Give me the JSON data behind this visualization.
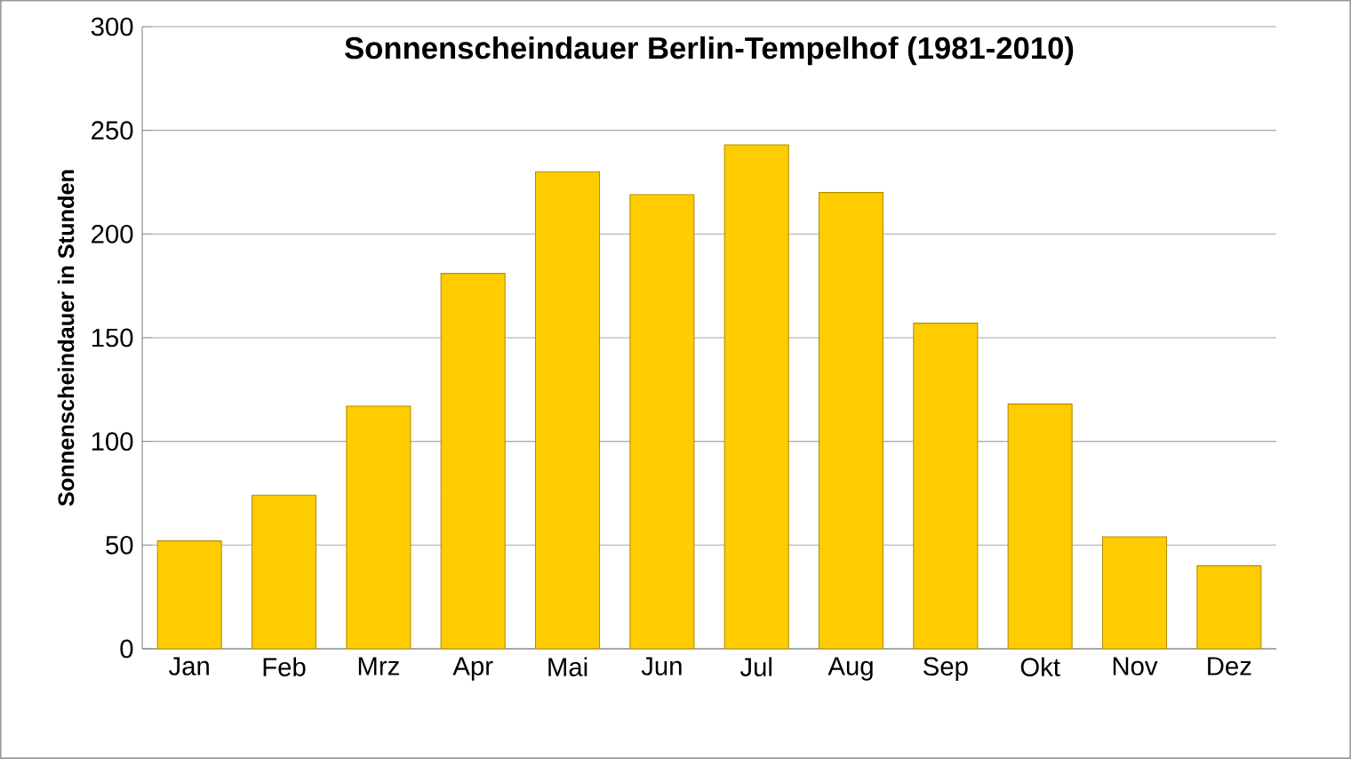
{
  "chart_data": {
    "type": "bar",
    "title": "Sonnenscheindauer Berlin-Tempelhof (1981-2010)",
    "ylabel": "Sonnenscheindauer in Stunden",
    "categories": [
      "Jan",
      "Feb",
      "Mrz",
      "Apr",
      "Mai",
      "Jun",
      "Jul",
      "Aug",
      "Sep",
      "Okt",
      "Nov",
      "Dez"
    ],
    "values": [
      52,
      74,
      117,
      181,
      230,
      219,
      243,
      220,
      157,
      118,
      54,
      40
    ],
    "color": "#ffcc00",
    "ylim": [
      0,
      300
    ],
    "yticks": [
      0,
      50,
      100,
      150,
      200,
      250,
      300
    ],
    "grid": "y"
  }
}
